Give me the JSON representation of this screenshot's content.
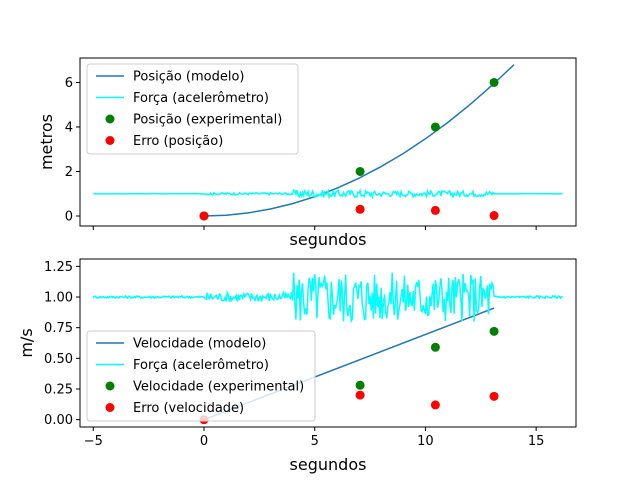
{
  "chart_data": [
    {
      "type": "line",
      "xlabel": "segundos",
      "ylabel": "metros",
      "xlim": [
        -5.6,
        16.8
      ],
      "ylim": [
        -0.45,
        7.1
      ],
      "xticks": [
        -5,
        0,
        5,
        10,
        15
      ],
      "show_x_tick_labels": false,
      "yticks": [
        0,
        2,
        4,
        6
      ],
      "ytick_labels": [
        "0",
        "2",
        "4",
        "6"
      ],
      "grid": false,
      "legend_position": "top-left",
      "series": [
        {
          "name": "Posição (modelo)",
          "kind": "line",
          "color": "#1f77b4",
          "x": [
            0,
            1,
            2,
            3,
            4,
            5,
            6,
            7,
            8,
            9,
            10,
            11,
            12,
            13,
            14
          ],
          "y": [
            0.0,
            0.035,
            0.139,
            0.312,
            0.555,
            0.867,
            1.249,
            1.7,
            2.22,
            2.81,
            3.469,
            4.198,
            4.996,
            5.863,
            6.8
          ]
        },
        {
          "name": "Força (acelerômetro)",
          "kind": "line",
          "color": "#00ffff",
          "x_range": [
            -5,
            16.2
          ],
          "baseline": 1.0,
          "noise_bands": [
            {
              "from": 0,
              "to": 4,
              "amplitude": 0.05
            },
            {
              "from": 4,
              "to": 7.6,
              "amplitude": 0.17
            },
            {
              "from": 7.6,
              "to": 13.1,
              "amplitude": 0.13
            }
          ]
        },
        {
          "name": "Posição (experimental)",
          "kind": "scatter",
          "color": "#008000",
          "x": [
            0,
            7.05,
            10.45,
            13.1
          ],
          "y": [
            0,
            2.0,
            4.0,
            6.0
          ]
        },
        {
          "name": "Erro (posição)",
          "kind": "scatter",
          "color": "#ff0000",
          "x": [
            0,
            7.05,
            10.45,
            13.1
          ],
          "y": [
            0,
            0.3,
            0.25,
            0.02
          ]
        }
      ]
    },
    {
      "type": "line",
      "xlabel": "segundos",
      "ylabel": "m/s",
      "xlim": [
        -5.6,
        16.8
      ],
      "ylim": [
        -0.06,
        1.31
      ],
      "xticks": [
        -5,
        0,
        5,
        10,
        15
      ],
      "xtick_labels": [
        "−5",
        "0",
        "5",
        "10",
        "15"
      ],
      "yticks": [
        0,
        0.25,
        0.5,
        0.75,
        1.0,
        1.25
      ],
      "ytick_labels": [
        "0.00",
        "0.25",
        "0.50",
        "0.75",
        "1.00",
        "1.25"
      ],
      "grid": false,
      "legend_position": "bottom-left",
      "series": [
        {
          "name": "Velocidade (modelo)",
          "kind": "line",
          "color": "#1f77b4",
          "x": [
            0,
            13.1
          ],
          "y": [
            0.0,
            0.91
          ]
        },
        {
          "name": "Força (acelerômetro)",
          "kind": "line",
          "color": "#00ffff",
          "x_range": [
            -5,
            16.2
          ],
          "baseline": 1.0,
          "noise_bands": [
            {
              "from": 0,
              "to": 4,
              "amplitude": 0.04
            },
            {
              "from": 4,
              "to": 7.6,
              "amplitude": 0.22
            },
            {
              "from": 7.6,
              "to": 13.1,
              "amplitude": 0.2
            }
          ]
        },
        {
          "name": "Velocidade (experimental)",
          "kind": "scatter",
          "color": "#008000",
          "x": [
            7.05,
            10.45,
            13.1
          ],
          "y": [
            0.28,
            0.59,
            0.72
          ]
        },
        {
          "name": "Erro (velocidade)",
          "kind": "scatter",
          "color": "#ff0000",
          "x": [
            0,
            7.05,
            10.45,
            13.1
          ],
          "y": [
            0.0,
            0.2,
            0.12,
            0.19
          ]
        }
      ]
    }
  ]
}
